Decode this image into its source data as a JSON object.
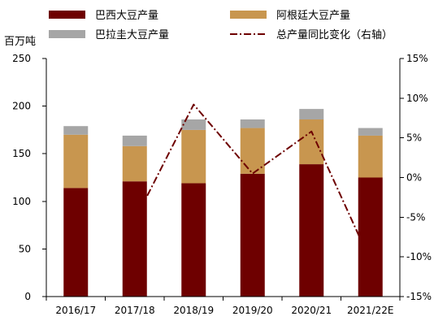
{
  "chart_data": {
    "type": "bar",
    "stacked": true,
    "categories": [
      "2016/17",
      "2017/18",
      "2018/19",
      "2019/20",
      "2020/21",
      "2021/22E"
    ],
    "ylabel": "百万吨",
    "ylim": [
      0,
      250
    ],
    "yticks": [
      "0",
      "50",
      "100",
      "150",
      "200",
      "250"
    ],
    "y2lim": [
      -15,
      15
    ],
    "y2ticks": [
      "15%",
      "10%",
      "5%",
      "0%",
      "-5%",
      "-10%",
      "-15%"
    ],
    "series": [
      {
        "name": "巴西大豆产量",
        "type": "bar",
        "axis": "left",
        "color": "#6E0000",
        "values": [
          114,
          121,
          119,
          129,
          139,
          125
        ]
      },
      {
        "name": "阿根廷大豆产量",
        "type": "bar",
        "axis": "left",
        "color": "#C8964F",
        "values": [
          56,
          37,
          56,
          48,
          47,
          44
        ]
      },
      {
        "name": "巴拉圭大豆产量",
        "type": "bar",
        "axis": "left",
        "color": "#A6A6A6",
        "values": [
          9,
          11,
          11,
          9,
          11,
          8
        ]
      },
      {
        "name": "总产量同比变化（右轴）",
        "type": "line",
        "axis": "right",
        "color": "#6E0000",
        "line_style": "dash-dot",
        "values": [
          null,
          -5.4,
          9.2,
          0.5,
          5.8,
          -10.5
        ]
      }
    ],
    "grid": false,
    "legend": "top"
  }
}
